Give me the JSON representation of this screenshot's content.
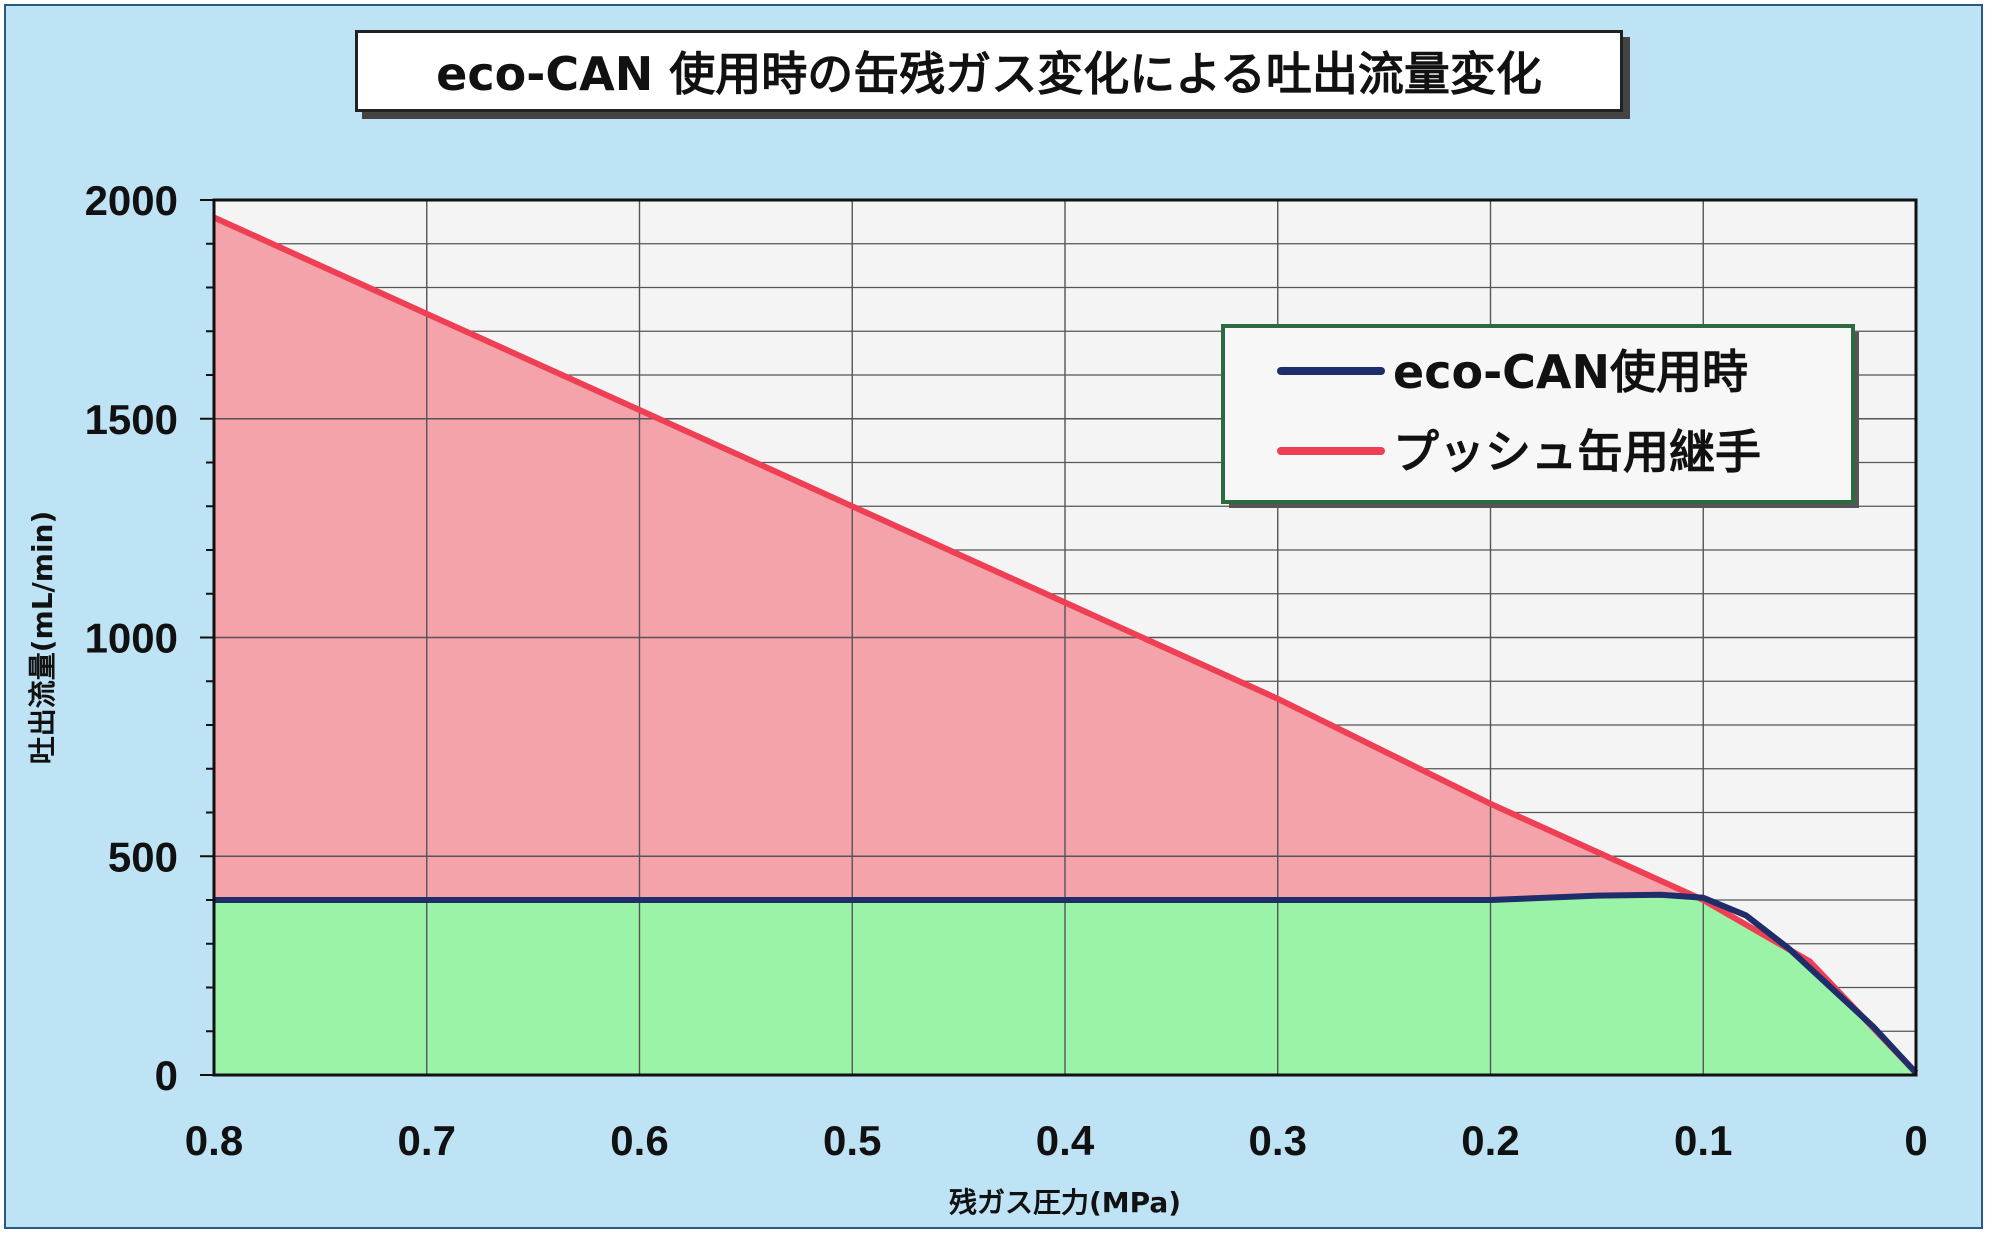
{
  "colors": {
    "background": "#bde3f5",
    "plot_background": "#f4f4f4",
    "grid": "#555555",
    "eco_can_line": "#1f2d6b",
    "push_can_line": "#ee3f55",
    "push_fill": "#f4a3ab",
    "eco_fill": "#9bf3a8",
    "legend_border": "#2d6a3e"
  },
  "chart_data": {
    "type": "area",
    "title": "eco-CAN 使用時の缶残ガス変化による吐出流量変化",
    "xlabel": "残ガス圧力(MPa)",
    "ylabel": "吐出流量(mL/min)",
    "xlim": [
      0.8,
      0
    ],
    "ylim": [
      0,
      2000
    ],
    "x_ticks": [
      "0.8",
      "0.7",
      "0.6",
      "0.5",
      "0.4",
      "0.3",
      "0.2",
      "0.1",
      "0"
    ],
    "y_ticks": [
      "0",
      "500",
      "1000",
      "1500",
      "2000"
    ],
    "grid": true,
    "legend_position": "top-right",
    "series": [
      {
        "name": "eco-CAN使用時",
        "x": [
          0.8,
          0.7,
          0.6,
          0.5,
          0.4,
          0.3,
          0.2,
          0.15,
          0.12,
          0.1,
          0.08,
          0.06,
          0.04,
          0.02,
          0
        ],
        "y": [
          400,
          400,
          400,
          400,
          400,
          400,
          400,
          410,
          412,
          405,
          365,
          290,
          200,
          110,
          5
        ]
      },
      {
        "name": "プッシュ缶用継手",
        "x": [
          0.8,
          0.7,
          0.6,
          0.5,
          0.4,
          0.3,
          0.2,
          0.1,
          0.05,
          0
        ],
        "y": [
          1960,
          1740,
          1520,
          1300,
          1080,
          860,
          620,
          400,
          260,
          5
        ]
      }
    ]
  }
}
